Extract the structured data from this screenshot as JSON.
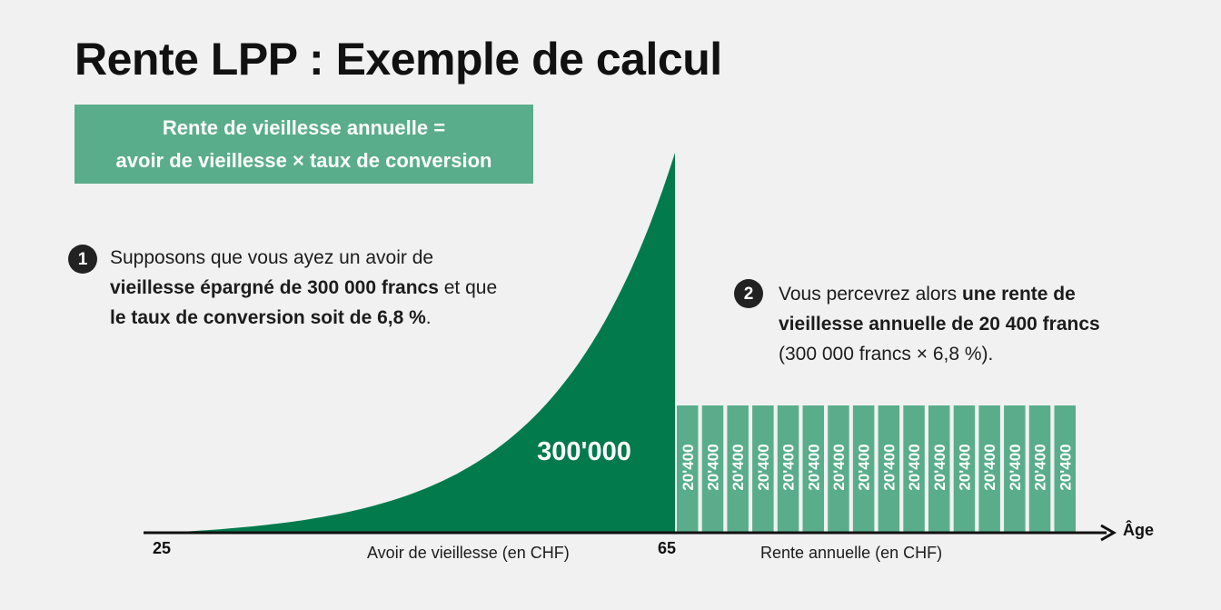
{
  "title": "Rente LPP : Exemple de calcul",
  "formula": {
    "line1": "Rente de vieillesse annuelle =",
    "line2": "avoir de vieillesse × taux de conversion"
  },
  "step1": {
    "number": "1",
    "t1": "Supposons que vous ayez un avoir de",
    "b1": "vieillesse épargné de 300 000 francs",
    "t2": " et que",
    "b2": "le taux de conversion soit de 6,8 %",
    "t3": "."
  },
  "step2": {
    "number": "2",
    "t1": "Vous percevrez alors ",
    "b1": "une rente de vieillesse annuelle de 20 400 francs",
    "t2": " (300 000 francs × 6,8 %)."
  },
  "chart_data": {
    "type": "area",
    "savings_total_label": "300'000",
    "savings_total": 300000,
    "age_start": "25",
    "age_retirement": "65",
    "annual_rent_label": "20'400",
    "annual_rent": 20400,
    "rent_bar_count": 16,
    "axis_name": "Âge",
    "savings_caption": "Avoir de vieillesse (en CHF)",
    "rent_caption": "Rente annuelle (en CHF)"
  },
  "colors": {
    "dark_green": "#027a4c",
    "light_green": "#5aad8a",
    "axis": "#111111"
  }
}
